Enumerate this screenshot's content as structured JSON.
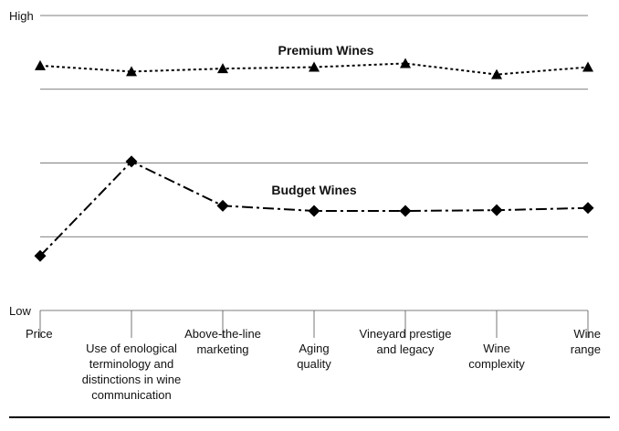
{
  "chart_data": {
    "type": "line",
    "ylim": [
      0,
      4
    ],
    "grid": true,
    "y_tick_labels": {
      "high": "High",
      "low": "Low"
    },
    "categories": [
      "Price",
      "Use of enological terminology and distinctions in wine communication",
      "Above-the-line marketing",
      "Aging quality",
      "Vineyard prestige and legacy",
      "Wine complexity",
      "Wine range"
    ],
    "series": [
      {
        "name": "Premium Wines",
        "values": [
          3.32,
          3.24,
          3.28,
          3.3,
          3.35,
          3.2,
          3.3
        ],
        "marker": "triangle",
        "line_style": "dotted",
        "color": "#000000"
      },
      {
        "name": "Budget Wines",
        "values": [
          0.74,
          2.02,
          1.42,
          1.35,
          1.35,
          1.36,
          1.39
        ],
        "marker": "diamond",
        "line_style": "dash-dot",
        "color": "#000000"
      }
    ]
  }
}
